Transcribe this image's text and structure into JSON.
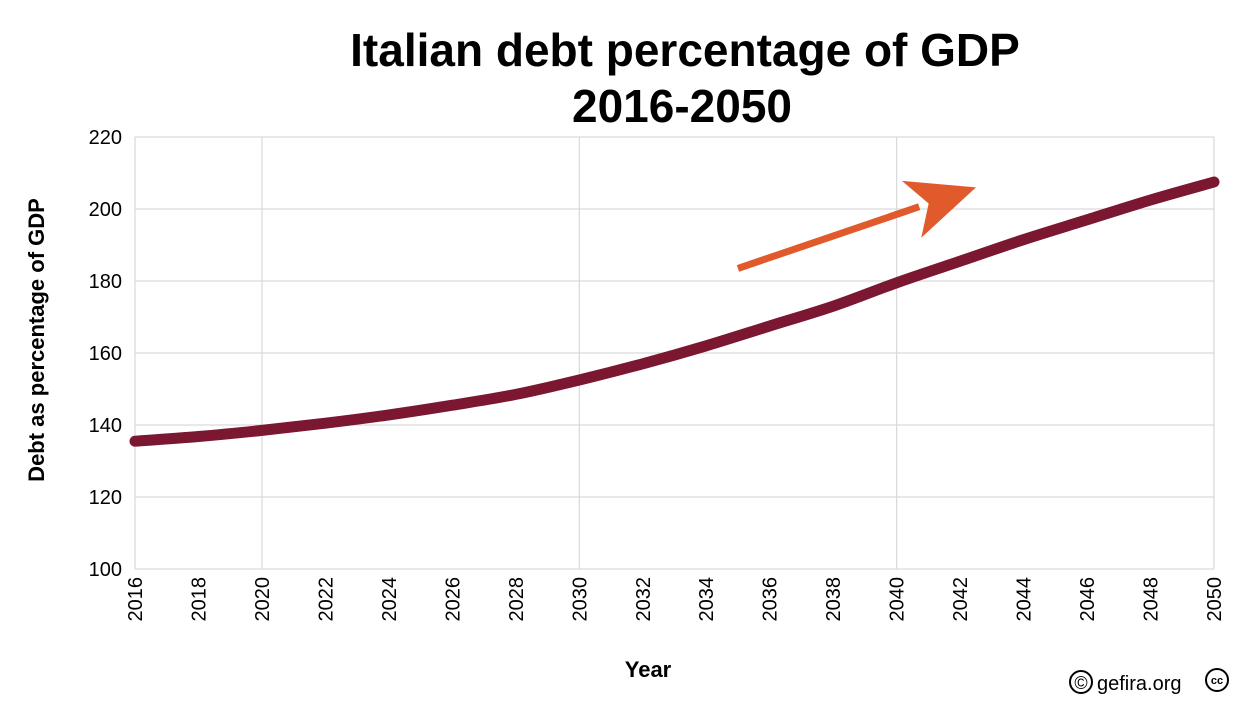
{
  "chart_data": {
    "type": "line",
    "title": "Italian debt percentage of GDP",
    "subtitle": "2016-2050",
    "xlabel": "Year",
    "ylabel": "Debt as percentage of GDP",
    "xlim": [
      2016,
      2050
    ],
    "ylim": [
      100,
      220
    ],
    "x_ticks": [
      "2016",
      "2018",
      "2020",
      "2022",
      "2024",
      "2026",
      "2028",
      "2030",
      "2032",
      "2034",
      "2036",
      "2038",
      "2040",
      "2042",
      "2044",
      "2046",
      "2048",
      "2050"
    ],
    "y_ticks": [
      "100",
      "120",
      "140",
      "160",
      "180",
      "200",
      "220"
    ],
    "grid": true,
    "legend": "none",
    "series": [
      {
        "color": "#7b1730",
        "x": [
          2016,
          2018,
          2020,
          2022,
          2024,
          2026,
          2028,
          2030,
          2032,
          2034,
          2036,
          2038,
          2040,
          2042,
          2044,
          2046,
          2048,
          2050
        ],
        "values": [
          135.5,
          136.8,
          138.5,
          140.5,
          142.8,
          145.5,
          148.5,
          152.5,
          157,
          162,
          167.5,
          173,
          179.5,
          185.5,
          191.5,
          197,
          202.5,
          207.5
        ]
      }
    ],
    "annotations": [
      {
        "type": "arrow",
        "color": "#e05a2b",
        "from": {
          "x": 2035,
          "y": 183.5
        },
        "to": {
          "x": 2042.5,
          "y": 206
        }
      }
    ]
  },
  "credit": {
    "copyright_symbol": "©",
    "text": "gefira.org",
    "cc_badge": "cc"
  }
}
